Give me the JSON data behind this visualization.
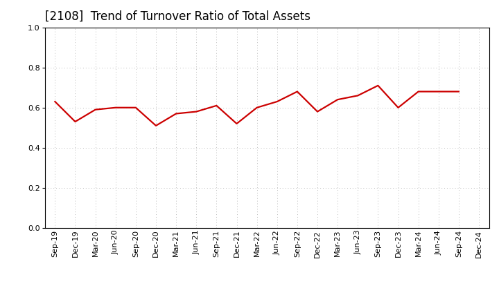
{
  "title": "[2108]  Trend of Turnover Ratio of Total Assets",
  "labels": [
    "Sep-19",
    "Dec-19",
    "Mar-20",
    "Jun-20",
    "Sep-20",
    "Dec-20",
    "Mar-21",
    "Jun-21",
    "Sep-21",
    "Dec-21",
    "Mar-22",
    "Jun-22",
    "Sep-22",
    "Dec-22",
    "Mar-23",
    "Jun-23",
    "Sep-23",
    "Dec-23",
    "Mar-24",
    "Jun-24",
    "Sep-24",
    "Dec-24"
  ],
  "values": [
    0.63,
    0.53,
    0.59,
    0.6,
    0.6,
    0.51,
    0.57,
    0.58,
    0.61,
    0.52,
    0.6,
    0.63,
    0.68,
    0.58,
    0.64,
    0.66,
    0.71,
    0.6,
    0.68,
    0.68,
    0.68,
    null
  ],
  "line_color": "#cc0000",
  "line_width": 1.6,
  "ylim": [
    0.0,
    1.0
  ],
  "yticks": [
    0.0,
    0.2,
    0.4,
    0.6,
    0.8,
    1.0
  ],
  "background_color": "#ffffff",
  "title_fontsize": 12,
  "tick_fontsize": 8,
  "grid_color": "#bbbbbb",
  "grid_style": "dotted"
}
